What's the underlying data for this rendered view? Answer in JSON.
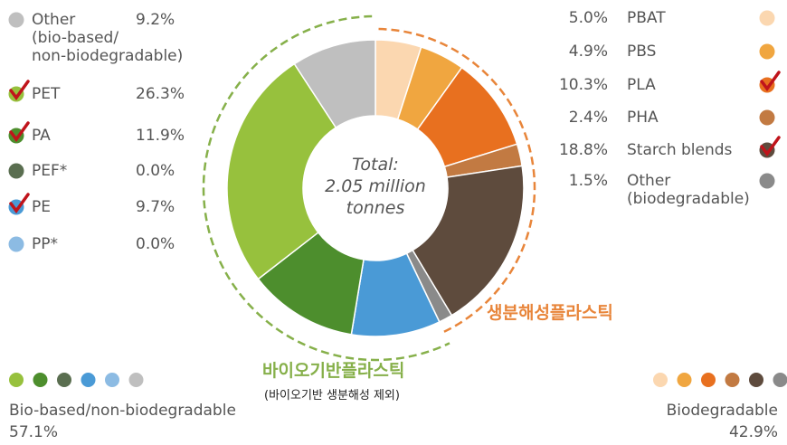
{
  "chart_data": {
    "type": "donut",
    "center_text": "Total:\n2.05 million\ntonnes",
    "categories": [
      "PBAT",
      "PBS",
      "PLA",
      "PHA",
      "Starch blends",
      "Other\n(biodegradable)",
      "PP*",
      "PE",
      "PEF*",
      "PA",
      "PET",
      "Other\n(bio-based/\nnon-biodegradable)"
    ],
    "values": [
      5.0,
      4.9,
      10.3,
      2.4,
      18.8,
      1.5,
      0.0,
      9.7,
      0.0,
      11.9,
      26.3,
      9.2
    ],
    "value_labels": [
      "5.0%",
      "4.9%",
      "10.3%",
      "2.4%",
      "18.8%",
      "1.5%",
      "0.0%",
      "9.7%",
      "0.0%",
      "11.9%",
      "26.3%",
      "9.2%"
    ],
    "colors": [
      "#fbd7b0",
      "#f0a640",
      "#e8701f",
      "#c27a42",
      "#5e4b3d",
      "#8a8a8a",
      "#8cbbe3",
      "#4a9ad6",
      "#5a6e50",
      "#4d8e2d",
      "#97c13d",
      "#bfbfbf"
    ],
    "checked": [
      false,
      false,
      true,
      false,
      true,
      false,
      false,
      true,
      false,
      true,
      true,
      false
    ],
    "groups": [
      {
        "name": "Biodegradable",
        "value": 42.9,
        "value_label": "42.9%",
        "color": "#e8853a",
        "annotation": "생분해성플라스틱"
      },
      {
        "name": "Bio-based/non-biodegradable",
        "value": 57.1,
        "value_label": "57.1%",
        "color": "#86b04a",
        "annotation": "바이오기반플라스틱",
        "note": "(바이오기반 생분해성 제외)"
      }
    ]
  }
}
